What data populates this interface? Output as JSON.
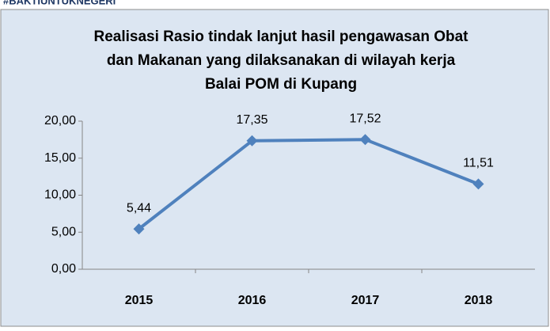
{
  "header": "#BAKTIUNTUKNEGERI",
  "chart_data": {
    "type": "line",
    "title": [
      "Realisasi Rasio tindak lanjut hasil pengawasan  Obat",
      "dan Makanan  yang  dilaksanakan di wilayah kerja",
      "Balai POM di Kupang"
    ],
    "categories": [
      "2015",
      "2016",
      "2017",
      "2018"
    ],
    "values": [
      5.44,
      17.35,
      17.52,
      11.51
    ],
    "value_labels": [
      "5,44",
      "17,35",
      "17,52",
      "11,51"
    ],
    "color": "#4f81bd",
    "ylim": [
      0,
      20
    ],
    "yticks": [
      {
        "value": 0,
        "label": "0,00"
      },
      {
        "value": 5,
        "label": "5,00"
      },
      {
        "value": 10,
        "label": "10,00"
      },
      {
        "value": 15,
        "label": "15,00"
      },
      {
        "value": 20,
        "label": "20,00"
      }
    ],
    "grid": false
  }
}
